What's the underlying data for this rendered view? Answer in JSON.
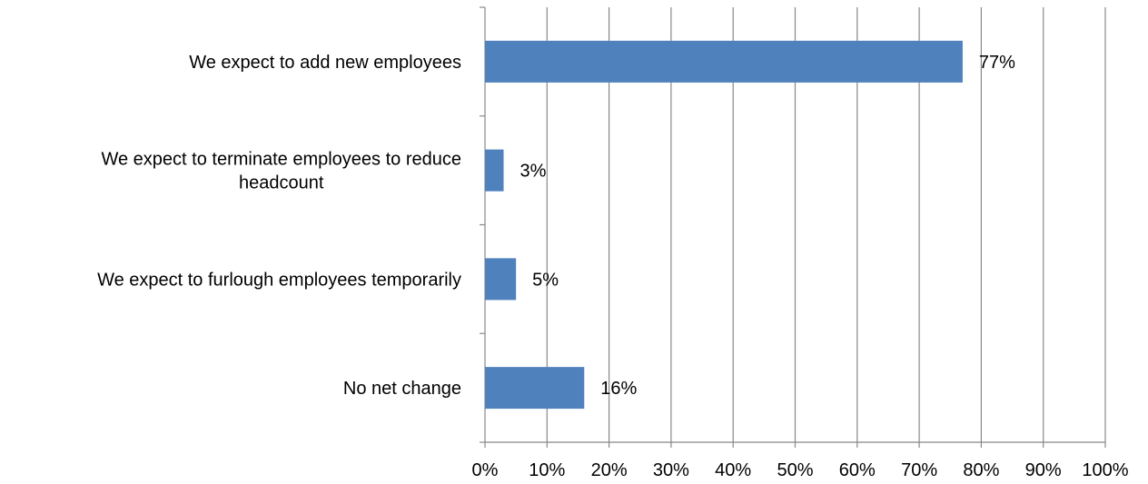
{
  "chart_data": {
    "type": "bar",
    "orientation": "horizontal",
    "title": "",
    "xlabel": "",
    "ylabel": "",
    "categories": [
      [
        "We expect to add new employees"
      ],
      [
        "We expect to terminate employees to reduce",
        "headcount"
      ],
      [
        "We expect to furlough employees temporarily"
      ],
      [
        "No net change"
      ]
    ],
    "values": [
      77,
      3,
      5,
      16
    ],
    "data_labels": [
      "77%",
      "3%",
      "5%",
      "16%"
    ],
    "xlim": [
      0,
      100
    ],
    "x_ticks": [
      0,
      10,
      20,
      30,
      40,
      50,
      60,
      70,
      80,
      90,
      100
    ],
    "x_tick_labels": [
      "0%",
      "10%",
      "20%",
      "30%",
      "40%",
      "50%",
      "60%",
      "70%",
      "80%",
      "90%",
      "100%"
    ],
    "grid": true,
    "legend": false,
    "colors": {
      "bar": "#4F81BD",
      "grid": "#888888",
      "axis": "#888888"
    }
  }
}
